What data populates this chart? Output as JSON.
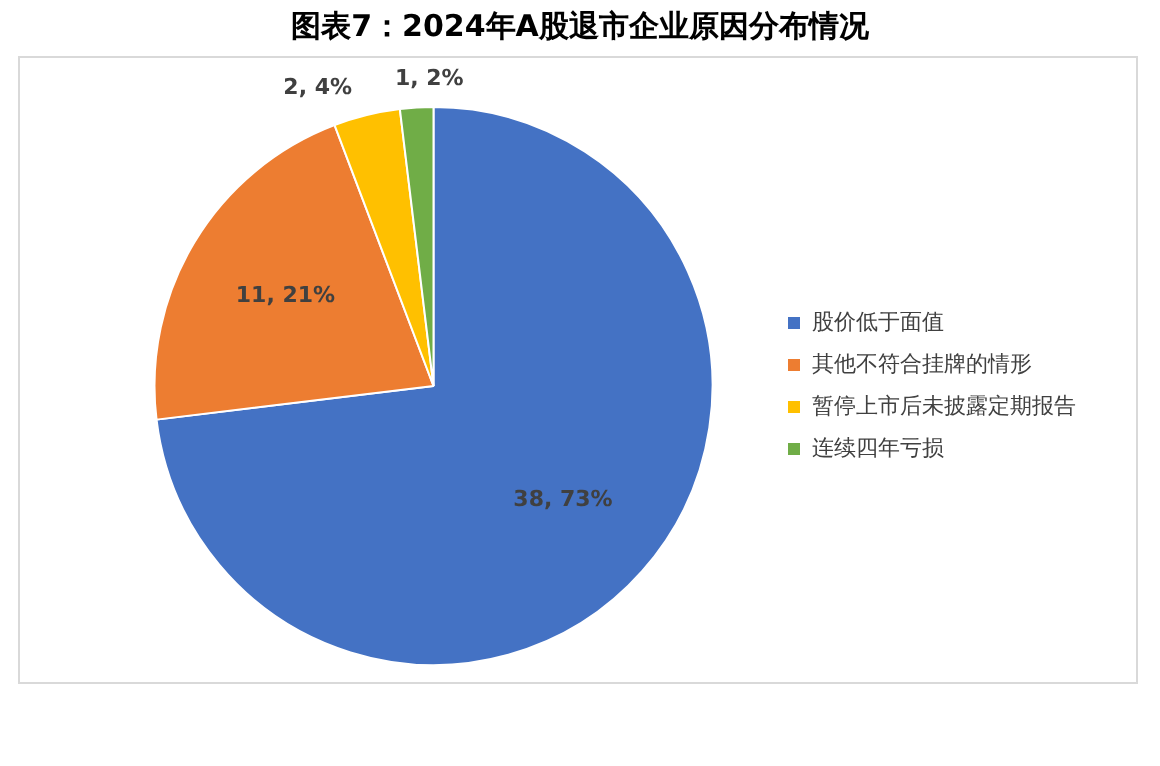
{
  "chart_data": {
    "type": "pie",
    "title": "图表7：2024年A股退市企业原因分布情况",
    "categories": [
      "股价低于面值",
      "其他不符合挂牌的情形",
      "暂停上市后未披露定期报告",
      "连续四年亏损"
    ],
    "values": [
      38,
      11,
      2,
      1
    ],
    "colors": [
      "#4472c4",
      "#ed7d31",
      "#ffc000",
      "#70ad47"
    ],
    "value_labels": [
      "38, 73%",
      "11, 21%",
      "2, 4%",
      "1, 2%"
    ],
    "legend": "right"
  }
}
